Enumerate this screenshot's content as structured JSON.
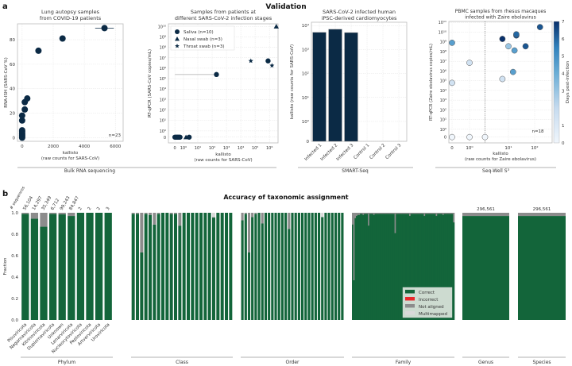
{
  "panel_a": {
    "letter": "a",
    "title": "Validation",
    "sections": [
      "Bulk RNA sequencing",
      "SMART-Seq",
      "Seq-Well S³"
    ]
  },
  "panel_b": {
    "letter": "b",
    "title": "Accuracy of taxonomic assignment",
    "ylabel": "Fraction",
    "seq_header": "# sequences",
    "legend": [
      "Correct",
      "Incorrect",
      "Not aligned",
      "Multimapped"
    ]
  },
  "colors": {
    "navy": "#0b2a45",
    "correct": "#13653a",
    "incorrect": "#e8282b",
    "not_aligned": "#8c8c8c",
    "multimapped": "#d9d9d9"
  },
  "chart_data": [
    {
      "type": "scatter",
      "title": "Lung autopsy samples\nfrom COVID-19 patients",
      "xlabel": "kallisto\n(raw counts for SARS-CoV)",
      "ylabel": "RNA-ISH (SARS-CoV %)",
      "xlim": [
        -300,
        6500
      ],
      "ylim": [
        -3,
        93
      ],
      "xticks": [
        0,
        2000,
        4000,
        6000
      ],
      "xticklabels": [
        "0",
        "2000",
        "4000",
        "6000"
      ],
      "yticks": [
        0,
        20,
        40,
        60,
        80
      ],
      "yticklabels": [
        "0",
        "20",
        "40",
        "60",
        "80"
      ],
      "annotation": "n=23",
      "points": [
        {
          "x": 0,
          "y": 0
        },
        {
          "x": 0,
          "y": 1
        },
        {
          "x": 0,
          "y": 2
        },
        {
          "x": 0,
          "y": 3
        },
        {
          "x": 0,
          "y": 4
        },
        {
          "x": 0,
          "y": 5
        },
        {
          "x": 0,
          "y": 6
        },
        {
          "x": 0,
          "y": 14
        },
        {
          "x": 0,
          "y": 18
        },
        {
          "x": 170,
          "y": 23
        },
        {
          "x": 170,
          "y": 29
        },
        {
          "x": 330,
          "y": 32
        },
        {
          "x": 1050,
          "y": 71
        },
        {
          "x": 2600,
          "y": 81,
          "xerr": 180
        },
        {
          "x": 5300,
          "y": 89.5,
          "xerr": 600
        }
      ]
    },
    {
      "type": "scatter",
      "title": "Samples from patients at\ndifferent SARS-CoV-2 infection stages",
      "xlabel": "kallisto\n(raw counts for SARS-CoV)",
      "ylabel": "RT-qPCR (SARS-CoV copies/mL)",
      "scale": "symlog",
      "xticks": [
        0,
        1,
        10,
        100,
        1000,
        10000,
        100000,
        1000000
      ],
      "xticklabels": [
        "0",
        "10⁰",
        "10¹",
        "10²",
        "10³",
        "10⁴",
        "10⁵",
        "10⁶"
      ],
      "yticks": [
        0,
        1,
        10,
        100,
        1000,
        10000,
        100000,
        1000000,
        10000000,
        100000000,
        1000000000,
        10000000000
      ],
      "yticklabels": [
        "0",
        "10⁰",
        "10¹",
        "10²",
        "10³",
        "10⁴",
        "10⁵",
        "10⁶",
        "10⁷",
        "10⁸",
        "10⁹",
        "10¹⁰"
      ],
      "series": [
        {
          "name": "Saliva (n=10)",
          "marker": "circle",
          "points": [
            {
              "x": 0,
              "y": 0
            },
            {
              "x": 0.1,
              "y": 0
            },
            {
              "x": 0.2,
              "y": 0
            },
            {
              "x": 0.3,
              "y": 0
            },
            {
              "x": 0.4,
              "y": 0
            },
            {
              "x": 0.5,
              "y": 0
            },
            {
              "x": 0.6,
              "y": 0
            },
            {
              "x": 2.5,
              "y": 0
            },
            {
              "x": 200,
              "y": 250000,
              "xerr_low": 0
            },
            {
              "x": 800000,
              "y": 5000000
            }
          ]
        },
        {
          "name": "Nasal swab (n=3)",
          "marker": "triangle",
          "points": [
            {
              "x": 0.3,
              "y": 0
            },
            {
              "x": 1.5,
              "y": 0
            },
            {
              "x": 3000000,
              "y": 10000000000
            }
          ]
        },
        {
          "name": "Throat swab (n=3)",
          "marker": "star",
          "points": [
            {
              "x": 50000,
              "y": 5000000
            },
            {
              "x": 1500000,
              "y": 1800000
            },
            {
              "x": 800000,
              "y": 5000000
            }
          ]
        }
      ]
    },
    {
      "type": "bar",
      "title": "SARS-CoV-2 infected human\niPSC-derived cardiomyocytes",
      "ylabel": "kallisto (raw counts for SARS-CoV)",
      "scale": "symlog",
      "categories": [
        "Infected 1",
        "Infected 2",
        "Infected 3",
        "Control 1",
        "Control 2",
        "Control 3"
      ],
      "values": [
        5200,
        7000,
        5100,
        0,
        0,
        0
      ],
      "yticks": [
        0,
        1,
        10,
        100,
        1000,
        10000
      ],
      "yticklabels": [
        "0",
        "10⁰",
        "10¹",
        "10²",
        "10³",
        "10⁴"
      ]
    },
    {
      "type": "scatter",
      "title": "PBMC samples from rhesus macaques\ninfected with Zaire ebolavirus",
      "xlabel": "kallisto\n(raw counts for Zaire ebolavirus)",
      "ylabel": "RT-qPCR (Zaire ebolavirus copies/mL)",
      "scale": "symlog",
      "annotation": "n=18",
      "xticks": [
        0,
        1,
        10,
        100
      ],
      "xticklabels": [
        "0",
        "10⁰",
        "10¹",
        "10²"
      ],
      "yticks": [
        0,
        1,
        10,
        100,
        1000,
        10000,
        100000,
        1000000,
        10000000,
        100000000,
        1000000000,
        10000000000,
        100000000000
      ],
      "yticklabels": [
        "0",
        "10⁰",
        "10¹",
        "10²",
        "10³",
        "10⁴",
        "10⁵",
        "10⁶",
        "10⁷",
        "10⁸",
        "10⁹",
        "10¹⁰",
        "10¹¹"
      ],
      "colorbar": {
        "label": "Days post-infection",
        "range": [
          0,
          7
        ],
        "ticks": [
          "0",
          "1",
          "3",
          "4",
          "5",
          "6",
          "7"
        ],
        "tickvals": [
          0,
          1,
          3,
          4,
          5,
          6,
          7
        ]
      },
      "threshold_x": 2.5,
      "points": [
        {
          "x": 0,
          "y": 800000000,
          "day": 4.5
        },
        {
          "x": 0,
          "y": 60000,
          "day": 1.5
        },
        {
          "x": 1,
          "y": 7000000,
          "day": 1.5
        },
        {
          "x": 0,
          "y": 0,
          "day": 0
        },
        {
          "x": 1,
          "y": 0,
          "day": 0
        },
        {
          "x": 2.5,
          "y": 0,
          "day": 0
        },
        {
          "x": 7,
          "y": 2000000000,
          "day": 7
        },
        {
          "x": 7,
          "y": 150000,
          "day": 1.5
        },
        {
          "x": 10,
          "y": 350000000,
          "day": 3
        },
        {
          "x": 15,
          "y": 800000,
          "day": 4.5
        },
        {
          "x": 17,
          "y": 130000000,
          "day": 4.5
        },
        {
          "x": 20,
          "y": 4500000000,
          "day": 6.5
        },
        {
          "x": 20,
          "y": 6000000000,
          "day": 6
        },
        {
          "x": 45,
          "y": 350000000,
          "day": 6.3
        },
        {
          "x": 160,
          "y": 33000000000,
          "day": 6.3
        }
      ]
    },
    {
      "type": "bar",
      "stacked": true,
      "title": "Accuracy of taxonomic assignment",
      "ylabel": "Fraction",
      "ylim": [
        0,
        1
      ],
      "yticks": [
        "0.0",
        "0.2",
        "0.4",
        "0.6",
        "0.8",
        "1.0"
      ],
      "groups": [
        {
          "name": "Phylum",
          "categories": [
            "Pisuviricota",
            "Negarnaviricota",
            "Kitrinoviricota",
            "Duplornaviricota",
            "Unknown",
            "Lenarviricota",
            "Nucleocytoviricota",
            "Peploviricota",
            "Artverviricota",
            "Uroviricota"
          ],
          "counts": [
            "56,104",
            "14,297",
            "35,349",
            "6,712",
            "99,243",
            "84,847",
            "2",
            "2",
            "2",
            "3"
          ],
          "correct": [
            0.99,
            0.945,
            0.87,
            0.99,
            0.985,
            0.97,
            1,
            1,
            1,
            1
          ],
          "not_aligned": [
            0.01,
            0.055,
            0.13,
            0.01,
            0.015,
            0.03,
            0,
            0,
            0,
            0
          ],
          "multimapped": [
            0,
            0,
            0,
            0,
            0,
            0,
            0,
            0,
            0,
            0
          ]
        },
        {
          "name": "Class",
          "correct": [
            0.99,
            0.99,
            0.63,
            0.99,
            0.98,
            0.89,
            0.99,
            1,
            1,
            0.99,
            0.99,
            0.88,
            1,
            1,
            1,
            1,
            1,
            1,
            1,
            0.955,
            1,
            1,
            1,
            1
          ],
          "not_aligned": [
            0.01,
            0.01,
            0.37,
            0.01,
            0.02,
            0.11,
            0.01,
            0,
            0,
            0.01,
            0.01,
            0.12,
            0,
            0,
            0,
            0,
            0,
            0,
            0,
            0.005,
            0,
            0,
            0,
            0
          ],
          "multimapped": [
            0,
            0,
            0,
            0,
            0,
            0,
            0,
            0,
            0,
            0,
            0,
            0,
            0,
            0,
            0,
            0,
            0,
            0,
            0,
            0.04,
            0,
            0,
            0,
            0
          ]
        },
        {
          "name": "Order",
          "correct": [
            0.93,
            0.99,
            0.63,
            0.96,
            0.99,
            1,
            0.9,
            1,
            1,
            1,
            1,
            1,
            1,
            1,
            0.85,
            1,
            1,
            1,
            1,
            1,
            1,
            1,
            1,
            1,
            0.96,
            1,
            1,
            1,
            1,
            1,
            1
          ],
          "not_aligned": [
            0.07,
            0.01,
            0.37,
            0.04,
            0.01,
            0,
            0.1,
            0,
            0,
            0,
            0,
            0,
            0,
            0,
            0.15,
            0,
            0,
            0,
            0,
            0,
            0,
            0,
            0,
            0,
            0,
            0,
            0,
            0,
            0,
            0,
            0
          ],
          "multimapped": [
            0,
            0,
            0,
            0,
            0,
            0,
            0,
            0,
            0,
            0,
            0,
            0,
            0,
            0,
            0,
            0,
            0,
            0,
            0,
            0,
            0,
            0,
            0,
            0,
            0.04,
            0,
            0,
            0,
            0,
            0,
            0
          ]
        },
        {
          "name": "Family",
          "not_aligned": [
            0.11,
            0.63,
            0.05,
            0.03,
            0.02,
            0.02,
            0.01,
            0.01,
            0.02,
            0.01,
            0.01,
            0.01,
            0.12,
            0.01,
            0.01,
            0.01,
            0.02,
            0.01,
            0.01,
            0.01,
            0.01,
            0.01,
            0.01,
            0.01,
            0.01,
            0.01,
            0.01,
            0.01,
            0.01,
            0.01,
            0.01,
            0.01,
            0.19,
            0.01,
            0.01,
            0.01,
            0.01,
            0.01,
            0.01,
            0.01,
            0.01,
            0.01,
            0.01,
            0.03,
            0.01,
            0.01,
            0.01,
            0.01,
            0.01,
            0.01,
            0.01,
            0.01,
            0.01,
            0.01,
            0.03,
            0.01,
            0.01,
            0.01,
            0.01,
            0.01,
            0.01,
            0.01,
            0.01,
            0.03,
            0.01,
            0.01,
            0.01,
            0.01,
            0.02,
            0.01,
            0.01,
            0.01,
            0.01,
            0.01,
            0.01,
            0.01,
            0.09
          ]
        },
        {
          "name": "Genus",
          "counts": [
            "296,561"
          ],
          "correct": [
            0.97
          ],
          "not_aligned": [
            0.03
          ],
          "multimapped": [
            0
          ]
        },
        {
          "name": "Species",
          "counts": [
            "296,561"
          ],
          "correct": [
            0.97
          ],
          "not_aligned": [
            0.03
          ],
          "multimapped": [
            0
          ]
        }
      ]
    }
  ]
}
